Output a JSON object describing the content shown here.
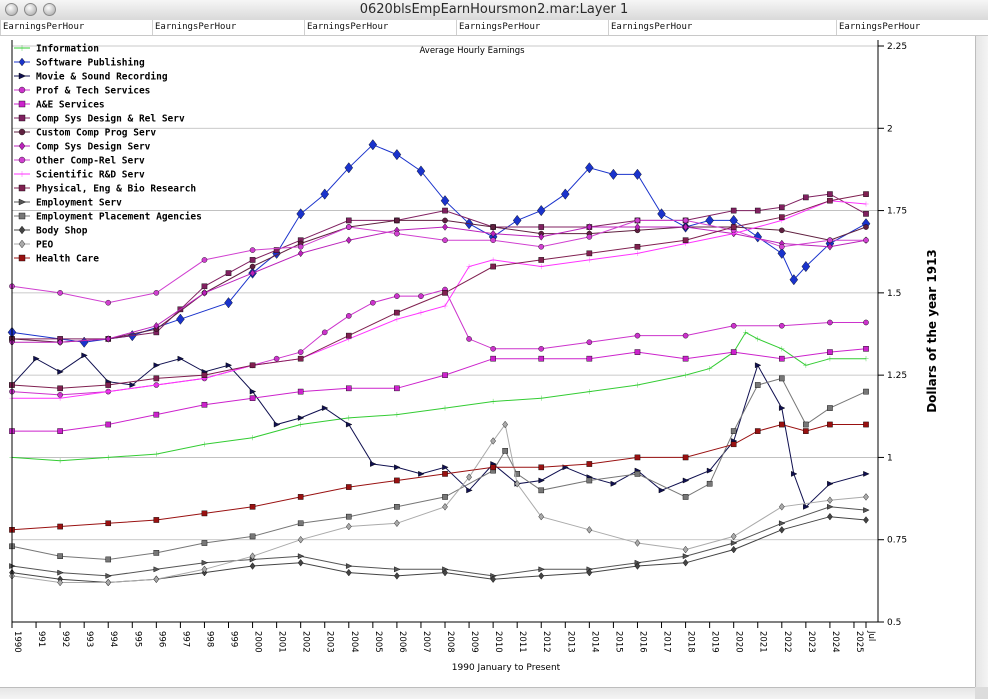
{
  "window": {
    "title": "0620blsEmpEarnHoursmon2.mar:Layer 1"
  },
  "column_headers": [
    "EarningsPerHour",
    "EarningsPerHour",
    "EarningsPerHour",
    "EarningsPerHour",
    "EarningsPerHour",
    "EarningsPerHour"
  ],
  "chart_data": {
    "type": "line",
    "title": "Average Hourly Earnings",
    "xlabel": "1990 January to Present",
    "ylabel": "Dollars of the year 1913",
    "ylim": [
      0.5,
      2.25
    ],
    "xlim": [
      1990.0,
      2025.5
    ],
    "y_ticks": [
      "2.25",
      "2",
      "1.75",
      "1.5",
      "1.25",
      "1",
      "0.75",
      "0.5"
    ],
    "x_ticks": [
      "1990",
      "1991",
      "1992",
      "1993",
      "1994",
      "1995",
      "1996",
      "1997",
      "1998",
      "1999",
      "2000",
      "2001",
      "2002",
      "2003",
      "2004",
      "2005",
      "2006",
      "2007",
      "2008",
      "2009",
      "2010",
      "2011",
      "2012",
      "2013",
      "2014",
      "2015",
      "2016",
      "2017",
      "2018",
      "2019",
      "2020",
      "2021",
      "2022",
      "2023",
      "2024",
      "2025",
      "2025 Jul"
    ],
    "x_tick_display": [
      "1990",
      "991",
      "992",
      "993",
      "994",
      "995",
      "996",
      "997",
      "998",
      "999",
      "2000",
      "2001",
      "2002",
      "2003",
      "2004",
      "2005",
      "2006",
      "2007",
      "2008",
      "2009",
      "2010",
      "2011",
      "2012",
      "2013",
      "2014",
      "2015",
      "2016",
      "2017",
      "2018",
      "2019",
      "2020",
      "2021",
      "2022",
      "2023",
      "2024",
      "2025",
      "Jul"
    ],
    "series": [
      {
        "name": "Information",
        "color": "#33cc33",
        "marker": "plus",
        "x": [
          1990,
          1992,
          1994,
          1996,
          1998,
          2000,
          2002,
          2004,
          2006,
          2008,
          2010,
          2012,
          2014,
          2016,
          2018,
          2019,
          2020,
          2020.5,
          2021,
          2022,
          2023,
          2024,
          2025.5
        ],
        "values": [
          1.0,
          0.99,
          1.0,
          1.01,
          1.04,
          1.06,
          1.1,
          1.12,
          1.13,
          1.15,
          1.17,
          1.18,
          1.2,
          1.22,
          1.25,
          1.27,
          1.32,
          1.38,
          1.36,
          1.33,
          1.28,
          1.3,
          1.3
        ]
      },
      {
        "name": "Software Publishing",
        "color": "#1a33cc",
        "marker": "diamond",
        "x": [
          1990,
          1993,
          1995,
          1997,
          1999,
          2000,
          2001,
          2002,
          2003,
          2004,
          2005,
          2006,
          2007,
          2008,
          2009,
          2010,
          2011,
          2012,
          2013,
          2014,
          2015,
          2016,
          2017,
          2018,
          2019,
          2020,
          2021,
          2022,
          2022.5,
          2023,
          2024,
          2025.5
        ],
        "values": [
          1.38,
          1.35,
          1.37,
          1.42,
          1.47,
          1.56,
          1.62,
          1.74,
          1.8,
          1.88,
          1.95,
          1.92,
          1.87,
          1.78,
          1.71,
          1.67,
          1.72,
          1.75,
          1.8,
          1.88,
          1.86,
          1.86,
          1.74,
          1.7,
          1.72,
          1.72,
          1.67,
          1.62,
          1.54,
          1.58,
          1.65,
          1.71
        ]
      },
      {
        "name": "Movie & Sound Recording",
        "color": "#101050",
        "marker": "triangle",
        "x": [
          1990,
          1991,
          1992,
          1993,
          1994,
          1995,
          1996,
          1997,
          1998,
          1999,
          2000,
          2001,
          2002,
          2003,
          2004,
          2005,
          2006,
          2007,
          2008,
          2009,
          2010,
          2011,
          2012,
          2013,
          2014,
          2015,
          2016,
          2017,
          2018,
          2019,
          2020,
          2021,
          2022,
          2022.5,
          2023,
          2024,
          2025.5
        ],
        "values": [
          1.22,
          1.3,
          1.26,
          1.31,
          1.23,
          1.22,
          1.28,
          1.3,
          1.26,
          1.28,
          1.2,
          1.1,
          1.12,
          1.15,
          1.1,
          0.98,
          0.97,
          0.95,
          0.97,
          0.9,
          0.98,
          0.92,
          0.93,
          0.97,
          0.94,
          0.92,
          0.96,
          0.9,
          0.93,
          0.96,
          1.05,
          1.28,
          1.15,
          0.95,
          0.85,
          0.92,
          0.95
        ]
      },
      {
        "name": "Prof & Tech Services",
        "color": "#cc33cc",
        "marker": "circle",
        "x": [
          1990,
          1992,
          1994,
          1996,
          1998,
          2000,
          2001,
          2002,
          2003,
          2004,
          2005,
          2006,
          2007,
          2008,
          2009,
          2010,
          2012,
          2014,
          2016,
          2018,
          2020,
          2022,
          2024,
          2025.5
        ],
        "values": [
          1.2,
          1.19,
          1.2,
          1.22,
          1.24,
          1.28,
          1.3,
          1.32,
          1.38,
          1.43,
          1.47,
          1.49,
          1.49,
          1.51,
          1.36,
          1.33,
          1.33,
          1.35,
          1.37,
          1.37,
          1.4,
          1.4,
          1.41,
          1.41
        ]
      },
      {
        "name": "A&E Services",
        "color": "#cc22cc",
        "marker": "square",
        "x": [
          1990,
          1992,
          1994,
          1996,
          1998,
          2000,
          2002,
          2004,
          2006,
          2008,
          2010,
          2012,
          2014,
          2016,
          2018,
          2020,
          2022,
          2024,
          2025.5
        ],
        "values": [
          1.08,
          1.08,
          1.1,
          1.13,
          1.16,
          1.18,
          1.2,
          1.21,
          1.21,
          1.25,
          1.3,
          1.3,
          1.3,
          1.32,
          1.3,
          1.32,
          1.3,
          1.32,
          1.33
        ]
      },
      {
        "name": "Comp Sys Design & Rel Serv",
        "color": "#802060",
        "marker": "square",
        "x": [
          1990,
          1992,
          1994,
          1996,
          1997,
          1998,
          1999,
          2000,
          2001,
          2002,
          2004,
          2006,
          2008,
          2010,
          2012,
          2014,
          2016,
          2018,
          2020,
          2021,
          2022,
          2023,
          2024,
          2025.5
        ],
        "values": [
          1.36,
          1.36,
          1.36,
          1.38,
          1.45,
          1.52,
          1.56,
          1.6,
          1.63,
          1.66,
          1.72,
          1.72,
          1.75,
          1.7,
          1.7,
          1.7,
          1.72,
          1.72,
          1.75,
          1.75,
          1.76,
          1.79,
          1.8,
          1.74
        ]
      },
      {
        "name": "Custom Comp Prog Serv",
        "color": "#602040",
        "marker": "circle",
        "x": [
          1990,
          1992,
          1994,
          1996,
          1998,
          2000,
          2002,
          2004,
          2006,
          2008,
          2010,
          2012,
          2014,
          2016,
          2018,
          2020,
          2022,
          2024,
          2025.5
        ],
        "values": [
          1.36,
          1.35,
          1.36,
          1.39,
          1.5,
          1.58,
          1.65,
          1.7,
          1.72,
          1.72,
          1.7,
          1.68,
          1.68,
          1.69,
          1.7,
          1.7,
          1.69,
          1.66,
          1.7
        ]
      },
      {
        "name": "Comp Sys Design Serv",
        "color": "#bb22bb",
        "marker": "diamond",
        "x": [
          1990,
          1992,
          1994,
          1996,
          1998,
          2000,
          2002,
          2004,
          2006,
          2008,
          2010,
          2012,
          2014,
          2016,
          2018,
          2020,
          2022,
          2024,
          2025.5
        ],
        "values": [
          1.35,
          1.35,
          1.36,
          1.4,
          1.5,
          1.56,
          1.62,
          1.66,
          1.69,
          1.7,
          1.68,
          1.67,
          1.7,
          1.7,
          1.7,
          1.68,
          1.65,
          1.64,
          1.66
        ]
      },
      {
        "name": "Other Comp-Rel Serv",
        "color": "#d040d0",
        "marker": "circle",
        "x": [
          1990,
          1992,
          1994,
          1996,
          1998,
          2000,
          2002,
          2004,
          2006,
          2008,
          2010,
          2012,
          2014,
          2016,
          2018,
          2020,
          2022,
          2024,
          2025.5
        ],
        "values": [
          1.52,
          1.5,
          1.47,
          1.5,
          1.6,
          1.63,
          1.64,
          1.7,
          1.68,
          1.66,
          1.66,
          1.64,
          1.67,
          1.72,
          1.72,
          1.69,
          1.64,
          1.66,
          1.66
        ]
      },
      {
        "name": "Scientific R&D Serv",
        "color": "#ff33ff",
        "marker": "plus",
        "x": [
          1990,
          1992,
          1994,
          1996,
          1998,
          2000,
          2002,
          2004,
          2006,
          2007,
          2008,
          2009,
          2010,
          2012,
          2014,
          2016,
          2018,
          2020,
          2022,
          2024,
          2025.5
        ],
        "values": [
          1.18,
          1.18,
          1.2,
          1.22,
          1.24,
          1.28,
          1.3,
          1.36,
          1.42,
          1.44,
          1.46,
          1.58,
          1.6,
          1.58,
          1.6,
          1.62,
          1.65,
          1.68,
          1.72,
          1.78,
          1.77
        ]
      },
      {
        "name": "Physical, Eng & Bio Research",
        "color": "#802050",
        "marker": "square",
        "x": [
          1990,
          1992,
          1994,
          1996,
          1998,
          2000,
          2002,
          2004,
          2006,
          2008,
          2010,
          2012,
          2014,
          2016,
          2018,
          2020,
          2022,
          2024,
          2025.5
        ],
        "values": [
          1.22,
          1.21,
          1.22,
          1.24,
          1.25,
          1.28,
          1.3,
          1.37,
          1.44,
          1.5,
          1.58,
          1.6,
          1.62,
          1.64,
          1.66,
          1.7,
          1.73,
          1.78,
          1.8
        ]
      },
      {
        "name": "Employment Serv",
        "color": "#555555",
        "marker": "triangle",
        "x": [
          1990,
          1992,
          1994,
          1996,
          1998,
          2000,
          2002,
          2004,
          2006,
          2008,
          2010,
          2012,
          2014,
          2016,
          2018,
          2020,
          2022,
          2024,
          2025.5
        ],
        "values": [
          0.67,
          0.65,
          0.64,
          0.66,
          0.68,
          0.69,
          0.7,
          0.67,
          0.66,
          0.66,
          0.64,
          0.66,
          0.66,
          0.68,
          0.7,
          0.74,
          0.8,
          0.85,
          0.84
        ]
      },
      {
        "name": "Employment Placement Agencies",
        "color": "#777777",
        "marker": "square",
        "x": [
          1990,
          1992,
          1994,
          1996,
          1998,
          2000,
          2002,
          2004,
          2006,
          2008,
          2010,
          2010.5,
          2011,
          2012,
          2014,
          2016,
          2018,
          2019,
          2020,
          2021,
          2022,
          2023,
          2024,
          2025.5
        ],
        "values": [
          0.73,
          0.7,
          0.69,
          0.71,
          0.74,
          0.76,
          0.8,
          0.82,
          0.85,
          0.88,
          0.96,
          1.02,
          0.95,
          0.9,
          0.93,
          0.95,
          0.88,
          0.92,
          1.08,
          1.22,
          1.24,
          1.1,
          1.15,
          1.2
        ]
      },
      {
        "name": "Body Shop",
        "color": "#444444",
        "marker": "diamond",
        "x": [
          1990,
          1992,
          1994,
          1996,
          1998,
          2000,
          2002,
          2004,
          2006,
          2008,
          2010,
          2012,
          2014,
          2016,
          2018,
          2020,
          2022,
          2024,
          2025.5
        ],
        "values": [
          0.65,
          0.63,
          0.62,
          0.63,
          0.65,
          0.67,
          0.68,
          0.65,
          0.64,
          0.65,
          0.63,
          0.64,
          0.65,
          0.67,
          0.68,
          0.72,
          0.78,
          0.82,
          0.81
        ]
      },
      {
        "name": "PEO",
        "color": "#aaaaaa",
        "marker": "diamond",
        "x": [
          1990,
          1992,
          1994,
          1996,
          1998,
          2000,
          2002,
          2004,
          2006,
          2008,
          2009,
          2010,
          2010.5,
          2011,
          2012,
          2014,
          2016,
          2018,
          2020,
          2022,
          2024,
          2025.5
        ],
        "values": [
          0.64,
          0.62,
          0.62,
          0.63,
          0.66,
          0.7,
          0.75,
          0.79,
          0.8,
          0.85,
          0.94,
          1.05,
          1.1,
          0.92,
          0.82,
          0.78,
          0.74,
          0.72,
          0.76,
          0.85,
          0.87,
          0.88
        ]
      },
      {
        "name": "Health Care",
        "color": "#991111",
        "marker": "square",
        "x": [
          1990,
          1992,
          1994,
          1996,
          1998,
          2000,
          2002,
          2004,
          2006,
          2008,
          2010,
          2012,
          2014,
          2016,
          2018,
          2020,
          2021,
          2022,
          2023,
          2024,
          2025.5
        ],
        "values": [
          0.78,
          0.79,
          0.8,
          0.81,
          0.83,
          0.85,
          0.88,
          0.91,
          0.93,
          0.95,
          0.97,
          0.97,
          0.98,
          1.0,
          1.0,
          1.04,
          1.08,
          1.1,
          1.08,
          1.1,
          1.1
        ]
      }
    ]
  }
}
